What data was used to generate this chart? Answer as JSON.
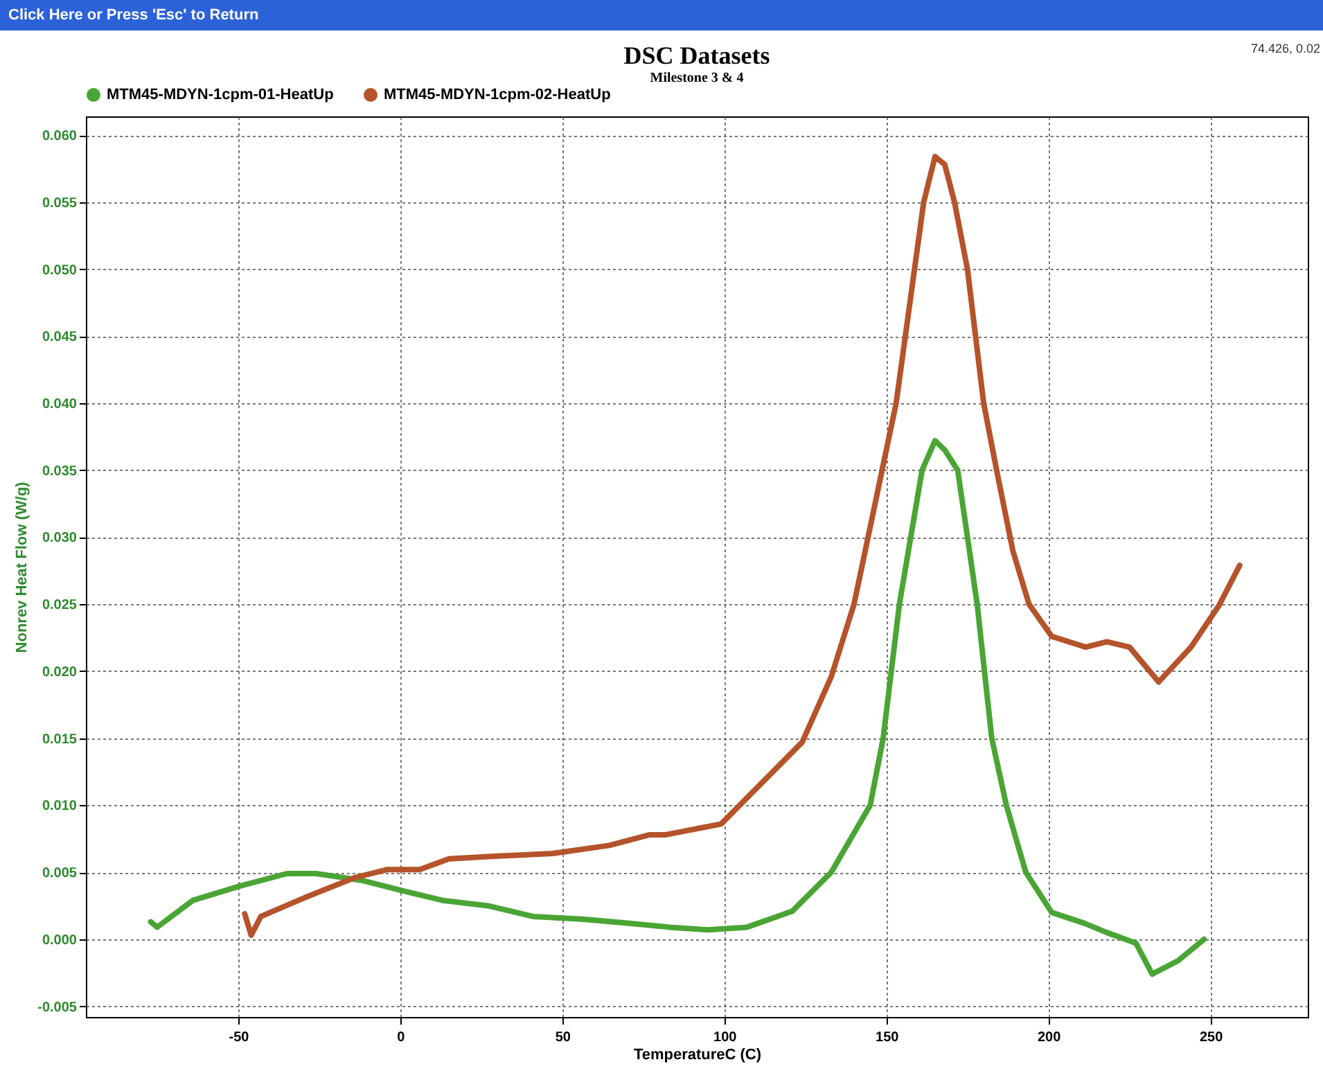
{
  "chart_data": {
    "type": "line",
    "title": "DSC Datasets",
    "subtitle": "Milestone 3 & 4",
    "xlabel": "TemperatureC (C)",
    "ylabel": "Nonrev Heat Flow (W/g)",
    "annotations": [
      "Click Here or Press 'Esc' to Return",
      "74.426, 0.02"
    ],
    "xlim": [
      -97,
      280
    ],
    "xticks": [
      -50,
      0,
      50,
      100,
      150,
      200,
      250
    ],
    "ylim": [
      -0.0058,
      0.0614
    ],
    "yticks": [
      {
        "value": -0.005,
        "label": "-0.005"
      },
      {
        "value": 0,
        "label": "0.000"
      },
      {
        "value": 0.005,
        "label": "0.005"
      },
      {
        "value": 0.01,
        "label": "0.010"
      },
      {
        "value": 0.015,
        "label": "0.015"
      },
      {
        "value": 0.02,
        "label": "0.020"
      },
      {
        "value": 0.025,
        "label": "0.025"
      },
      {
        "value": 0.03,
        "label": "0.030"
      },
      {
        "value": 0.035,
        "label": "0.035"
      },
      {
        "value": 0.04,
        "label": "0.040"
      },
      {
        "value": 0.045,
        "label": "0.045"
      },
      {
        "value": 0.05,
        "label": "0.050"
      },
      {
        "value": 0.055,
        "label": "0.055"
      },
      {
        "value": 0.06,
        "label": "0.060"
      }
    ],
    "grid": true,
    "legend": "top left",
    "marker": "none",
    "line_style": "solid",
    "series": [
      {
        "name": "MTM45-MDYN-1cpm-01-HeatUp",
        "color": "#4aa534",
        "x": [
          -77,
          -75,
          -64,
          -49,
          -35,
          -26,
          -12,
          1,
          13,
          27,
          41,
          56,
          70,
          83,
          95,
          107,
          121,
          133,
          145,
          149,
          154,
          161,
          165,
          168,
          172,
          178,
          182.5,
          187,
          193,
          201,
          211,
          218,
          227,
          232,
          240,
          248
        ],
        "values": [
          0.0013,
          0.0009,
          0.0029,
          0.004,
          0.0049,
          0.0049,
          0.0044,
          0.0036,
          0.0029,
          0.0025,
          0.0017,
          0.0015,
          0.0012,
          0.0009,
          0.0007,
          0.0009,
          0.0021,
          0.005,
          0.01,
          0.015,
          0.025,
          0.035,
          0.0372,
          0.0365,
          0.035,
          0.025,
          0.015,
          0.01,
          0.005,
          0.002,
          0.0012,
          0.0005,
          -0.0003,
          -0.0026,
          -0.0016,
          0.0
        ]
      },
      {
        "name": "MTM45-MDYN-1cpm-02-HeatUp",
        "color": "#b5532a",
        "x": [
          -48,
          -46,
          -43,
          -29.5,
          -14,
          -4,
          6,
          15,
          30,
          47,
          64.5,
          77,
          82,
          99,
          124,
          133,
          140,
          153,
          161.5,
          165,
          168,
          171,
          175,
          180,
          184,
          189,
          194,
          201,
          211.5,
          218,
          225,
          234,
          244,
          252.6,
          259
        ],
        "values": [
          0.0019,
          0.0003,
          0.0017,
          0.0031,
          0.0046,
          0.0052,
          0.0052,
          0.006,
          0.0062,
          0.0064,
          0.007,
          0.0078,
          0.0078,
          0.0086,
          0.0147,
          0.0196,
          0.025,
          0.04,
          0.055,
          0.0584,
          0.0578,
          0.055,
          0.05,
          0.04,
          0.035,
          0.029,
          0.025,
          0.0226,
          0.0218,
          0.0222,
          0.0218,
          0.0192,
          0.0218,
          0.0249,
          0.0279
        ]
      }
    ]
  }
}
